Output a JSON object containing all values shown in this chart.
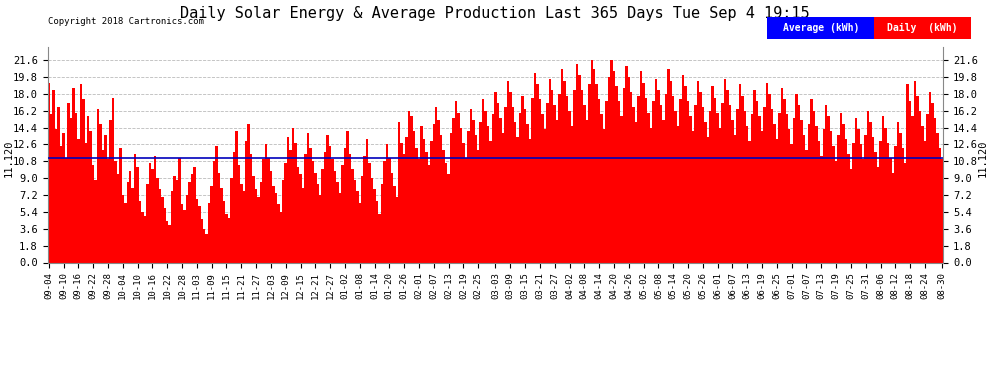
{
  "title": "Daily Solar Energy & Average Production Last 365 Days Tue Sep 4 19:15",
  "title_fontsize": 11,
  "copyright_text": "Copyright 2018 Cartronics.com",
  "average_value": 11.12,
  "average_label": "Average (kWh)",
  "daily_label": "Daily  (kWh)",
  "ylim": [
    0.0,
    23.0
  ],
  "yticks": [
    0.0,
    1.8,
    3.6,
    5.4,
    7.2,
    9.0,
    10.8,
    12.6,
    14.4,
    16.2,
    18.0,
    19.8,
    21.6
  ],
  "bar_color": "#FF0000",
  "average_line_color": "#0000BB",
  "background_color": "#FFFFFF",
  "grid_color": "#AAAAAA",
  "rotated_label": "11.120",
  "x_tick_labels": [
    "09-04",
    "09-10",
    "09-16",
    "09-22",
    "09-28",
    "10-04",
    "10-10",
    "10-16",
    "10-22",
    "10-28",
    "11-03",
    "11-09",
    "11-15",
    "11-21",
    "11-27",
    "12-03",
    "12-09",
    "12-15",
    "12-21",
    "12-27",
    "01-02",
    "01-08",
    "01-14",
    "01-20",
    "01-26",
    "02-01",
    "02-07",
    "02-13",
    "02-19",
    "02-25",
    "03-03",
    "03-09",
    "03-15",
    "03-21",
    "03-27",
    "04-02",
    "04-08",
    "04-14",
    "04-20",
    "04-26",
    "05-02",
    "05-08",
    "05-14",
    "05-20",
    "05-26",
    "06-01",
    "06-07",
    "06-13",
    "06-19",
    "06-25",
    "07-01",
    "07-07",
    "07-13",
    "07-19",
    "07-25",
    "07-31",
    "08-06",
    "08-12",
    "08-18",
    "08-24",
    "08-30"
  ],
  "daily_values": [
    19.2,
    15.8,
    18.4,
    14.2,
    16.6,
    12.4,
    13.8,
    11.2,
    17.0,
    15.4,
    18.6,
    16.0,
    13.2,
    19.0,
    17.4,
    12.8,
    15.6,
    14.0,
    10.4,
    8.8,
    16.4,
    14.8,
    12.0,
    13.6,
    11.0,
    15.2,
    17.6,
    10.8,
    9.4,
    12.2,
    7.2,
    6.4,
    8.6,
    9.8,
    8.0,
    11.6,
    10.2,
    6.6,
    5.4,
    5.0,
    8.4,
    10.6,
    10.0,
    11.4,
    9.0,
    7.8,
    7.0,
    5.8,
    4.4,
    4.0,
    7.6,
    9.2,
    8.8,
    11.2,
    6.2,
    5.6,
    7.2,
    8.6,
    9.4,
    10.2,
    6.8,
    6.0,
    4.6,
    3.6,
    3.0,
    6.4,
    8.2,
    10.8,
    12.4,
    9.6,
    8.0,
    6.6,
    5.2,
    4.8,
    9.0,
    11.8,
    14.0,
    10.4,
    8.4,
    7.6,
    13.0,
    14.8,
    11.6,
    9.2,
    7.8,
    7.0,
    8.6,
    11.0,
    12.6,
    11.2,
    9.8,
    8.2,
    7.4,
    6.2,
    5.4,
    8.8,
    10.6,
    13.4,
    12.0,
    14.4,
    12.8,
    10.2,
    9.4,
    8.0,
    11.6,
    13.8,
    12.2,
    10.8,
    9.6,
    8.4,
    7.2,
    10.0,
    11.8,
    13.6,
    12.4,
    11.0,
    9.8,
    8.6,
    7.4,
    10.4,
    12.2,
    14.0,
    11.6,
    10.0,
    8.8,
    7.6,
    6.4,
    9.2,
    11.4,
    13.2,
    10.6,
    9.0,
    7.8,
    6.6,
    5.2,
    8.4,
    10.8,
    12.6,
    11.2,
    9.6,
    8.2,
    7.0,
    15.0,
    12.8,
    11.6,
    13.4,
    16.2,
    15.6,
    14.0,
    12.2,
    11.0,
    14.6,
    13.2,
    11.8,
    10.4,
    13.0,
    14.8,
    16.6,
    15.2,
    13.6,
    12.0,
    10.6,
    9.4,
    13.8,
    15.4,
    17.2,
    16.0,
    14.4,
    12.8,
    11.2,
    14.0,
    16.4,
    15.2,
    13.6,
    12.0,
    15.0,
    17.4,
    16.2,
    14.6,
    13.0,
    15.8,
    18.2,
    17.0,
    15.4,
    13.8,
    16.6,
    19.4,
    18.2,
    16.6,
    15.0,
    13.4,
    16.0,
    17.8,
    16.4,
    14.8,
    13.2,
    17.6,
    20.2,
    19.0,
    17.4,
    15.8,
    14.2,
    17.0,
    19.6,
    18.4,
    16.8,
    15.2,
    18.0,
    20.6,
    19.4,
    17.8,
    16.2,
    14.6,
    18.4,
    21.2,
    20.0,
    18.4,
    16.8,
    15.2,
    19.0,
    21.6,
    20.6,
    19.0,
    17.4,
    15.8,
    14.2,
    17.2,
    19.8,
    21.6,
    20.4,
    18.8,
    17.2,
    15.6,
    18.6,
    21.0,
    19.8,
    18.2,
    16.6,
    15.0,
    17.8,
    20.4,
    19.2,
    17.6,
    16.0,
    14.4,
    17.2,
    19.6,
    18.4,
    16.8,
    15.2,
    18.0,
    20.6,
    19.4,
    17.8,
    16.2,
    14.6,
    17.4,
    20.0,
    18.8,
    17.2,
    15.6,
    14.0,
    16.8,
    19.4,
    18.2,
    16.6,
    15.0,
    13.4,
    16.2,
    18.8,
    17.6,
    16.0,
    14.4,
    17.0,
    19.6,
    18.4,
    16.8,
    15.2,
    13.6,
    16.4,
    19.0,
    17.8,
    16.2,
    14.6,
    13.0,
    15.8,
    18.4,
    17.2,
    15.6,
    14.0,
    16.6,
    19.2,
    18.0,
    16.4,
    14.8,
    13.2,
    16.0,
    18.6,
    17.4,
    15.8,
    14.2,
    12.6,
    15.4,
    18.0,
    16.8,
    15.2,
    13.6,
    12.0,
    14.8,
    17.4,
    16.2,
    14.6,
    13.0,
    11.4,
    14.2,
    16.8,
    15.6,
    14.0,
    12.4,
    10.8,
    13.6,
    16.0,
    14.8,
    13.2,
    11.6,
    10.0,
    12.8,
    15.4,
    14.2,
    12.6,
    11.0,
    13.6,
    16.2,
    15.0,
    13.4,
    11.8,
    10.2,
    13.0,
    15.6,
    14.4,
    12.8,
    11.2,
    9.6,
    12.4,
    15.0,
    13.8,
    12.2,
    10.6,
    19.0,
    17.2,
    15.6,
    19.4,
    17.8,
    16.2,
    14.6,
    13.0,
    15.8,
    18.2,
    17.0,
    15.4,
    13.8,
    12.2,
    11.0
  ]
}
